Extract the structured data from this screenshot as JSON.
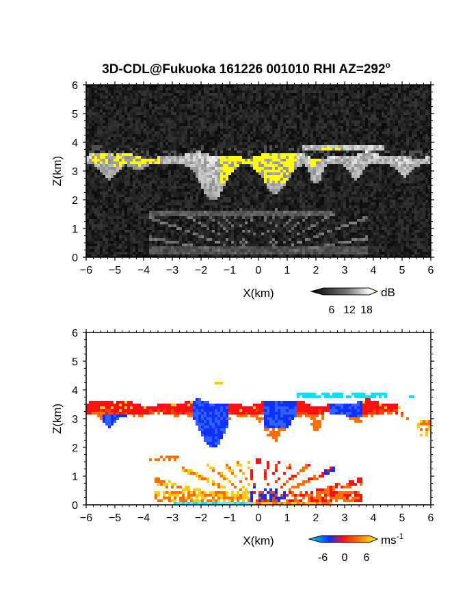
{
  "chart_data": [
    {
      "type": "heatmap",
      "title": "3D-CDL@Fukuoka 161226 001010 RHI AZ=292",
      "title_superscript": "o",
      "xlabel": "X(km)",
      "ylabel": "Z(km)",
      "xlim": [
        -6,
        6
      ],
      "ylim": [
        0,
        6
      ],
      "xticks": [
        "-6",
        "-5",
        "-4",
        "-3",
        "-2",
        "-1",
        "0",
        "1",
        "2",
        "3",
        "4",
        "5",
        "6"
      ],
      "yticks": [
        "0",
        "1",
        "2",
        "3",
        "4",
        "5",
        "6"
      ],
      "colorbar": {
        "label": "dB",
        "ticks": [
          "6",
          "12",
          "18"
        ],
        "range": [
          0,
          21
        ],
        "colormap": "grayscale-to-yellow"
      },
      "features": {
        "cloud_base_km": 3.3,
        "cloud_top_km": 3.6,
        "upper_layer_km": [
          3.7,
          4.0
        ],
        "virga_bottom_km": 1.9,
        "aerosol_fan_top_km": 1.8,
        "high_echo_regions_km": [
          [
            -5.8,
            -3.3
          ],
          [
            -1.3,
            1.3
          ],
          [
            1.8,
            2.2
          ]
        ]
      }
    },
    {
      "type": "heatmap",
      "xlabel": "X(km)",
      "ylabel": "Z(km)",
      "xlim": [
        -6,
        6
      ],
      "ylim": [
        0,
        6
      ],
      "xticks": [
        "-6",
        "-5",
        "-4",
        "-3",
        "-2",
        "-1",
        "0",
        "1",
        "2",
        "3",
        "4",
        "5",
        "6"
      ],
      "yticks": [
        "0",
        "1",
        "2",
        "3",
        "4",
        "5",
        "6"
      ],
      "colorbar": {
        "label": "ms",
        "label_superscript": "-1",
        "ticks": [
          "-6",
          "0",
          "6"
        ],
        "range": [
          -9,
          9
        ],
        "colormap": "cyan-blue-red-yellow"
      },
      "features": {
        "cloud_layer_km": [
          3.0,
          3.5
        ],
        "negative_velocity_cells_km": [
          [
            -2.3,
            -1.0
          ],
          [
            0.3,
            1.3
          ],
          [
            2.5,
            3.5
          ]
        ],
        "upper_layer_velocity_ms": -7,
        "low_level_fan_top_km": 1.6
      }
    }
  ],
  "colors": {
    "background": "#ffffff",
    "echo_low": "#000000",
    "echo_high": "#ffff00",
    "vel_min": "#00e0ff",
    "vel_mid_neg": "#1030ff",
    "vel_zero": "#ff1010",
    "vel_max": "#ffff00"
  }
}
